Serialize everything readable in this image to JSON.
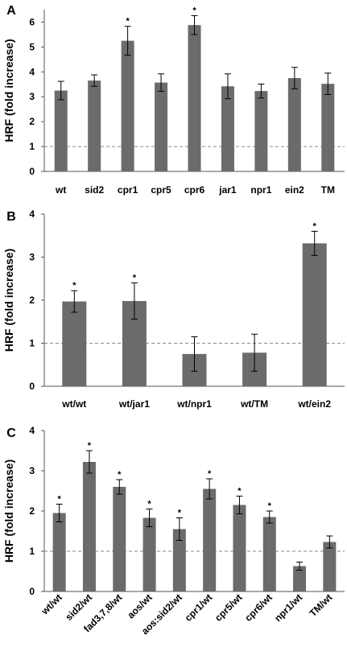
{
  "chart_data": [
    {
      "panel_label": "A",
      "type": "bar",
      "ylabel": "HRF (fold increase)",
      "ylim": [
        0,
        6.5
      ],
      "yticks": [
        0,
        1,
        2,
        3,
        4,
        5,
        6
      ],
      "reference_line": 1,
      "bar_color": "#6b6b6b",
      "categories": [
        "wt",
        "sid2",
        "cpr1",
        "cpr5",
        "cpr6",
        "jar1",
        "npr1",
        "ein2",
        "TM"
      ],
      "values": [
        3.25,
        3.65,
        5.25,
        3.57,
        5.88,
        3.42,
        3.23,
        3.75,
        3.52
      ],
      "errors": [
        0.37,
        0.23,
        0.58,
        0.35,
        0.38,
        0.5,
        0.28,
        0.43,
        0.43
      ],
      "significant": [
        false,
        false,
        true,
        false,
        true,
        false,
        false,
        false,
        false
      ],
      "star": "*"
    },
    {
      "panel_label": "B",
      "type": "bar",
      "ylabel": "HRF (fold increase)",
      "ylim": [
        0,
        4
      ],
      "yticks": [
        0,
        1,
        2,
        3,
        4
      ],
      "reference_line": 1,
      "bar_color": "#6b6b6b",
      "categories": [
        "wt/wt",
        "wt/jar1",
        "wt/npr1",
        "wt/TM",
        "wt/ein2"
      ],
      "values": [
        1.97,
        1.98,
        0.75,
        0.78,
        3.32
      ],
      "errors": [
        0.25,
        0.42,
        0.4,
        0.43,
        0.28
      ],
      "significant": [
        true,
        true,
        false,
        false,
        true
      ],
      "star": "*"
    },
    {
      "panel_label": "C",
      "type": "bar",
      "ylabel": "HRF (fold increase)",
      "ylim": [
        0,
        4
      ],
      "yticks": [
        0,
        1,
        2,
        3,
        4
      ],
      "reference_line": 1,
      "bar_color": "#6b6b6b",
      "categories": [
        "wt/wt",
        "sid2/wt",
        "fad3,7,8/wt",
        "aos/wt",
        "aos:sid2/wt",
        "cpr1/wt",
        "cpr5/wt",
        "cpr6/wt",
        "npr1/wt",
        "TM/wt"
      ],
      "values": [
        1.95,
        3.22,
        2.6,
        1.83,
        1.55,
        2.55,
        2.15,
        1.85,
        0.63,
        1.23
      ],
      "errors": [
        0.22,
        0.28,
        0.18,
        0.22,
        0.28,
        0.25,
        0.22,
        0.15,
        0.1,
        0.15
      ],
      "significant": [
        true,
        true,
        true,
        true,
        true,
        true,
        true,
        true,
        false,
        false
      ],
      "star": "*"
    }
  ]
}
